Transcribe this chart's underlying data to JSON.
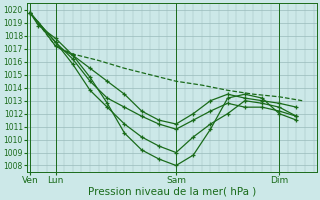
{
  "xlabel": "Pression niveau de la mer( hPa )",
  "background_color": "#cce8e8",
  "grid_color": "#99bbbb",
  "line_color": "#1a6b1a",
  "ylim": [
    1007.5,
    1020.5
  ],
  "yticks": [
    1008,
    1009,
    1010,
    1011,
    1012,
    1013,
    1014,
    1015,
    1016,
    1017,
    1018,
    1019,
    1020
  ],
  "xmin": -2,
  "xmax": 200,
  "vlines": [
    0,
    18,
    102,
    174
  ],
  "xtick_positions": [
    0,
    18,
    102,
    174
  ],
  "xtick_labels": [
    "Ven",
    "Lun",
    "Sam",
    "Dim"
  ],
  "lines": [
    {
      "x": [
        0,
        18,
        30,
        48,
        66,
        84,
        102,
        120,
        138,
        156,
        174,
        190
      ],
      "y": [
        1019.8,
        1017.2,
        1016.6,
        1016.1,
        1015.5,
        1015.0,
        1014.5,
        1014.2,
        1013.8,
        1013.5,
        1013.3,
        1013.0
      ],
      "has_markers": false,
      "linewidth": 0.9,
      "linestyle": "--"
    },
    {
      "x": [
        0,
        6,
        18,
        30,
        42,
        54,
        66,
        78,
        90,
        102,
        114,
        126,
        138,
        150,
        162,
        174,
        186
      ],
      "y": [
        1019.8,
        1019.0,
        1017.2,
        1016.5,
        1015.5,
        1014.5,
        1013.5,
        1012.2,
        1011.5,
        1011.2,
        1012.0,
        1013.0,
        1013.5,
        1013.2,
        1013.0,
        1012.8,
        1012.5
      ],
      "has_markers": true,
      "linewidth": 0.9,
      "linestyle": "-"
    },
    {
      "x": [
        0,
        18,
        30,
        42,
        54,
        66,
        78,
        90,
        102,
        114,
        126,
        138,
        150,
        162,
        174,
        186
      ],
      "y": [
        1019.8,
        1017.5,
        1016.2,
        1014.5,
        1013.2,
        1012.5,
        1011.8,
        1011.2,
        1010.8,
        1011.5,
        1012.2,
        1012.8,
        1012.5,
        1012.5,
        1012.2,
        1011.8
      ],
      "has_markers": true,
      "linewidth": 0.9,
      "linestyle": "-"
    },
    {
      "x": [
        0,
        18,
        30,
        42,
        54,
        66,
        78,
        90,
        102,
        114,
        126,
        138,
        150,
        162,
        174,
        186
      ],
      "y": [
        1019.8,
        1017.5,
        1015.8,
        1013.8,
        1012.5,
        1011.2,
        1010.2,
        1009.5,
        1009.0,
        1010.2,
        1011.2,
        1012.0,
        1013.0,
        1012.8,
        1012.5,
        1011.8
      ],
      "has_markers": true,
      "linewidth": 0.9,
      "linestyle": "-"
    },
    {
      "x": [
        0,
        6,
        18,
        30,
        42,
        54,
        66,
        78,
        90,
        102,
        114,
        126,
        138,
        150,
        162,
        174,
        186
      ],
      "y": [
        1019.8,
        1018.8,
        1017.8,
        1016.5,
        1014.8,
        1012.8,
        1010.5,
        1009.2,
        1008.5,
        1008.0,
        1008.8,
        1010.8,
        1013.2,
        1013.5,
        1013.2,
        1012.0,
        1011.5
      ],
      "has_markers": true,
      "linewidth": 0.9,
      "linestyle": "-"
    }
  ]
}
